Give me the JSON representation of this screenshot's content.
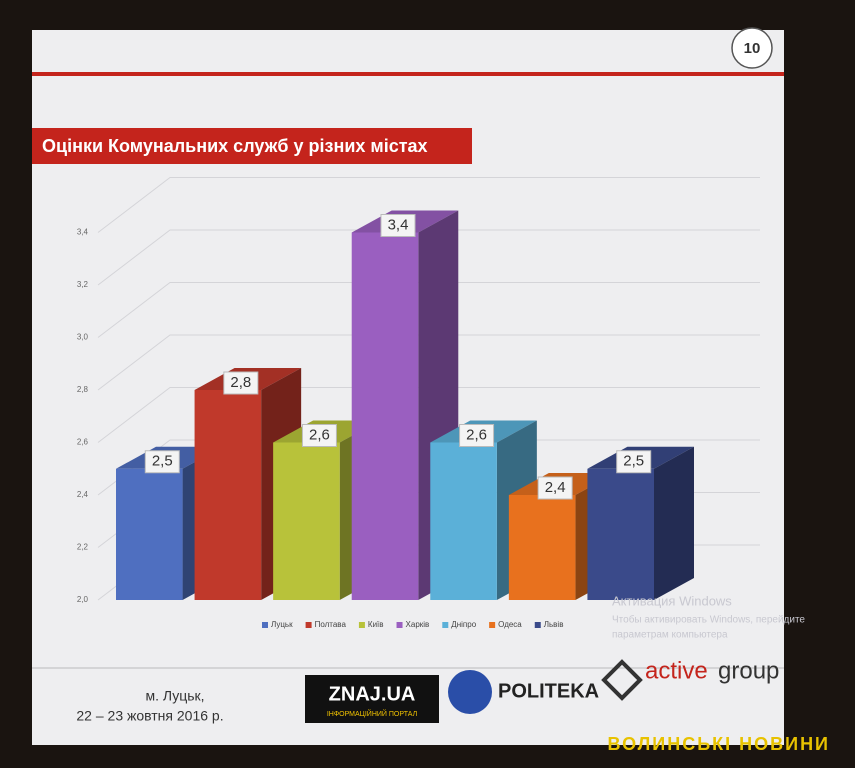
{
  "slide": {
    "number": "10",
    "title": "Оцінки Комунальних служб у різних містах",
    "footer": {
      "city": "м. Луцьк,",
      "dates": "22 – 23 жовтня  2016 р."
    },
    "logos": {
      "znaj": "ZNAJ.UA",
      "znaj_sub": "ІНФОРМАЦІЙНИЙ ПОРТАЛ",
      "politeka": "POLITEKA",
      "active": "active",
      "group": "group"
    },
    "watermark": [
      "Активация Windows",
      "Чтобы активировать Windows, перейдите",
      "параметрам компьютера"
    ],
    "caption": "ВОЛИНСЬКІ НОВИНИ"
  },
  "chart_data": {
    "type": "bar3d",
    "categories": [
      "Луцьк",
      "Полтава",
      "Київ",
      "Харків",
      "Дніпро",
      "Одеса",
      "Львів"
    ],
    "values": [
      2.5,
      2.8,
      2.6,
      3.4,
      2.6,
      2.4,
      2.5
    ],
    "value_labels": [
      "2,5",
      "2,8",
      "2,6",
      "3,4",
      "2,6",
      "2,4",
      "2,5"
    ],
    "colors": [
      "#4f6fc0",
      "#c0392b",
      "#b8c23a",
      "#9a5fc0",
      "#5bb0d8",
      "#e8711e",
      "#3a4a8a"
    ],
    "ylim": [
      2.0,
      3.6
    ],
    "yticks": [
      {
        "value": 2.0,
        "label": "2,0"
      },
      {
        "value": 2.2,
        "label": "2,2"
      },
      {
        "value": 2.4,
        "label": "2,4"
      },
      {
        "value": 2.6,
        "label": "2,6"
      },
      {
        "value": 2.8,
        "label": "2,8"
      },
      {
        "value": 3.0,
        "label": "3,0"
      },
      {
        "value": 3.2,
        "label": "3,2"
      },
      {
        "value": 3.4,
        "label": "3,4"
      }
    ],
    "grid": true,
    "legend": "bottom"
  }
}
